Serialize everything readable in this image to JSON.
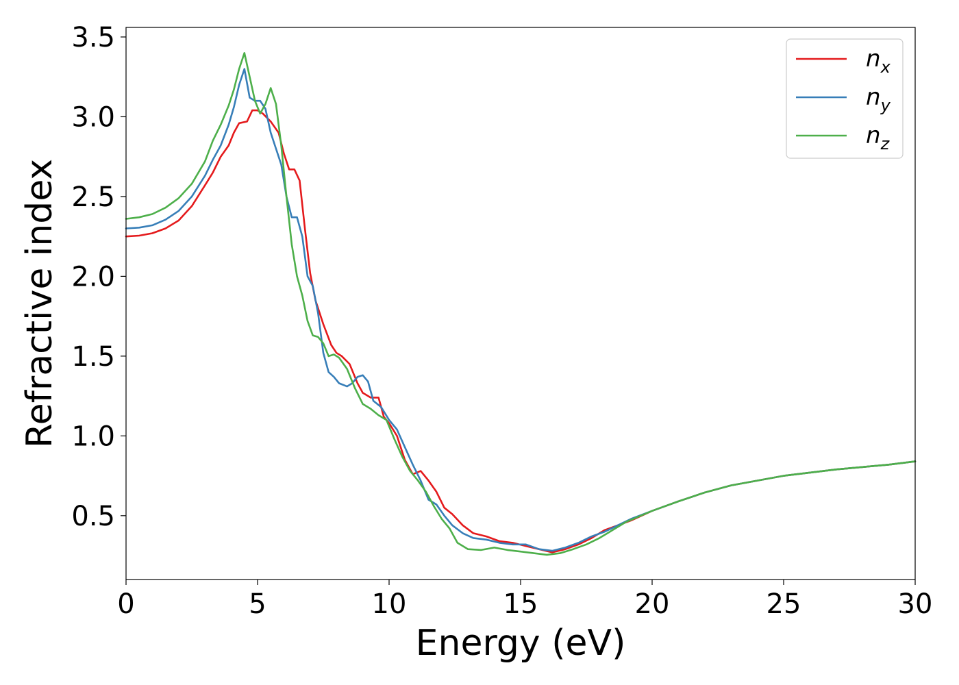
{
  "chart_data": {
    "type": "line",
    "title": "",
    "xlabel": "Energy (eV)",
    "ylabel": "Refractive index",
    "xlim": [
      0,
      30
    ],
    "ylim": [
      0.1,
      3.56
    ],
    "xticks": [
      0,
      5,
      10,
      15,
      20,
      25,
      30
    ],
    "yticks": [
      0.5,
      1.0,
      1.5,
      2.0,
      2.5,
      3.0,
      3.5
    ],
    "xtick_labels": [
      "0",
      "5",
      "10",
      "15",
      "20",
      "25",
      "30"
    ],
    "ytick_labels": [
      "0.5",
      "1.0",
      "1.5",
      "2.0",
      "2.5",
      "3.0",
      "3.5"
    ],
    "grid": false,
    "legend_position": "top-right",
    "series": [
      {
        "name": "n_x",
        "label_base": "n",
        "label_sub": "x",
        "color": "#e41a1c",
        "points": [
          [
            0,
            2.25
          ],
          [
            0.5,
            2.255
          ],
          [
            1,
            2.27
          ],
          [
            1.5,
            2.3
          ],
          [
            2,
            2.35
          ],
          [
            2.5,
            2.44
          ],
          [
            3,
            2.57
          ],
          [
            3.3,
            2.65
          ],
          [
            3.6,
            2.75
          ],
          [
            3.9,
            2.82
          ],
          [
            4.1,
            2.9
          ],
          [
            4.3,
            2.96
          ],
          [
            4.6,
            2.97
          ],
          [
            4.8,
            3.04
          ],
          [
            5.0,
            3.04
          ],
          [
            5.2,
            3.02
          ],
          [
            5.5,
            2.97
          ],
          [
            5.8,
            2.9
          ],
          [
            6.0,
            2.77
          ],
          [
            6.2,
            2.67
          ],
          [
            6.4,
            2.67
          ],
          [
            6.6,
            2.6
          ],
          [
            6.8,
            2.3
          ],
          [
            7.0,
            2.02
          ],
          [
            7.2,
            1.85
          ],
          [
            7.5,
            1.7
          ],
          [
            7.8,
            1.57
          ],
          [
            8.0,
            1.52
          ],
          [
            8.2,
            1.5
          ],
          [
            8.5,
            1.45
          ],
          [
            8.8,
            1.33
          ],
          [
            9.0,
            1.27
          ],
          [
            9.3,
            1.24
          ],
          [
            9.6,
            1.24
          ],
          [
            9.8,
            1.12
          ],
          [
            10.0,
            1.08
          ],
          [
            10.3,
            1.0
          ],
          [
            10.6,
            0.85
          ],
          [
            10.9,
            0.76
          ],
          [
            11.2,
            0.78
          ],
          [
            11.5,
            0.72
          ],
          [
            11.8,
            0.65
          ],
          [
            12.1,
            0.55
          ],
          [
            12.4,
            0.51
          ],
          [
            12.8,
            0.44
          ],
          [
            13.2,
            0.39
          ],
          [
            13.7,
            0.37
          ],
          [
            14.2,
            0.34
          ],
          [
            14.7,
            0.33
          ],
          [
            15.2,
            0.31
          ],
          [
            15.7,
            0.29
          ],
          [
            16.2,
            0.27
          ],
          [
            16.7,
            0.29
          ],
          [
            17.2,
            0.32
          ],
          [
            17.7,
            0.36
          ],
          [
            18.2,
            0.41
          ],
          [
            18.7,
            0.44
          ],
          [
            19.2,
            0.47
          ],
          [
            20,
            0.53
          ],
          [
            21,
            0.59
          ],
          [
            22,
            0.645
          ],
          [
            23,
            0.69
          ],
          [
            24,
            0.72
          ],
          [
            25,
            0.75
          ],
          [
            26,
            0.77
          ],
          [
            27,
            0.79
          ],
          [
            28,
            0.805
          ],
          [
            29,
            0.82
          ],
          [
            30,
            0.84
          ]
        ]
      },
      {
        "name": "n_y",
        "label_base": "n",
        "label_sub": "y",
        "color": "#377eb8",
        "points": [
          [
            0,
            2.3
          ],
          [
            0.5,
            2.305
          ],
          [
            1,
            2.32
          ],
          [
            1.5,
            2.355
          ],
          [
            2,
            2.41
          ],
          [
            2.5,
            2.5
          ],
          [
            3,
            2.63
          ],
          [
            3.3,
            2.73
          ],
          [
            3.6,
            2.82
          ],
          [
            3.9,
            2.95
          ],
          [
            4.1,
            3.06
          ],
          [
            4.3,
            3.2
          ],
          [
            4.5,
            3.3
          ],
          [
            4.7,
            3.12
          ],
          [
            4.9,
            3.1
          ],
          [
            5.1,
            3.1
          ],
          [
            5.3,
            3.05
          ],
          [
            5.5,
            2.9
          ],
          [
            5.7,
            2.8
          ],
          [
            5.9,
            2.7
          ],
          [
            6.1,
            2.5
          ],
          [
            6.3,
            2.37
          ],
          [
            6.5,
            2.37
          ],
          [
            6.7,
            2.25
          ],
          [
            6.9,
            2.0
          ],
          [
            7.1,
            1.94
          ],
          [
            7.3,
            1.77
          ],
          [
            7.5,
            1.52
          ],
          [
            7.7,
            1.4
          ],
          [
            7.9,
            1.37
          ],
          [
            8.1,
            1.33
          ],
          [
            8.4,
            1.31
          ],
          [
            8.6,
            1.33
          ],
          [
            8.8,
            1.37
          ],
          [
            9.0,
            1.38
          ],
          [
            9.2,
            1.34
          ],
          [
            9.4,
            1.22
          ],
          [
            9.7,
            1.18
          ],
          [
            10.0,
            1.1
          ],
          [
            10.3,
            1.04
          ],
          [
            10.6,
            0.93
          ],
          [
            10.9,
            0.82
          ],
          [
            11.2,
            0.72
          ],
          [
            11.5,
            0.6
          ],
          [
            11.8,
            0.57
          ],
          [
            12.1,
            0.5
          ],
          [
            12.4,
            0.44
          ],
          [
            12.8,
            0.39
          ],
          [
            13.2,
            0.36
          ],
          [
            13.7,
            0.35
          ],
          [
            14.2,
            0.33
          ],
          [
            14.7,
            0.32
          ],
          [
            15.2,
            0.32
          ],
          [
            15.7,
            0.29
          ],
          [
            16.2,
            0.28
          ],
          [
            16.7,
            0.3
          ],
          [
            17.2,
            0.33
          ],
          [
            17.7,
            0.37
          ],
          [
            18.2,
            0.4
          ],
          [
            18.7,
            0.44
          ],
          [
            19.2,
            0.48
          ],
          [
            20,
            0.53
          ],
          [
            21,
            0.59
          ],
          [
            22,
            0.645
          ],
          [
            23,
            0.69
          ],
          [
            24,
            0.72
          ],
          [
            25,
            0.75
          ],
          [
            26,
            0.77
          ],
          [
            27,
            0.79
          ],
          [
            28,
            0.805
          ],
          [
            29,
            0.82
          ],
          [
            30,
            0.84
          ]
        ]
      },
      {
        "name": "n_z",
        "label_base": "n",
        "label_sub": "z",
        "color": "#4daf4a",
        "points": [
          [
            0,
            2.36
          ],
          [
            0.5,
            2.37
          ],
          [
            1,
            2.39
          ],
          [
            1.5,
            2.43
          ],
          [
            2,
            2.49
          ],
          [
            2.5,
            2.58
          ],
          [
            3,
            2.72
          ],
          [
            3.3,
            2.85
          ],
          [
            3.6,
            2.95
          ],
          [
            3.9,
            3.07
          ],
          [
            4.1,
            3.17
          ],
          [
            4.3,
            3.3
          ],
          [
            4.5,
            3.4
          ],
          [
            4.7,
            3.25
          ],
          [
            4.9,
            3.1
          ],
          [
            5.1,
            3.02
          ],
          [
            5.3,
            3.08
          ],
          [
            5.5,
            3.18
          ],
          [
            5.7,
            3.08
          ],
          [
            5.9,
            2.82
          ],
          [
            6.1,
            2.5
          ],
          [
            6.3,
            2.2
          ],
          [
            6.5,
            2.0
          ],
          [
            6.7,
            1.88
          ],
          [
            6.9,
            1.72
          ],
          [
            7.1,
            1.63
          ],
          [
            7.3,
            1.62
          ],
          [
            7.5,
            1.58
          ],
          [
            7.7,
            1.5
          ],
          [
            7.9,
            1.51
          ],
          [
            8.1,
            1.49
          ],
          [
            8.4,
            1.42
          ],
          [
            8.7,
            1.3
          ],
          [
            9.0,
            1.2
          ],
          [
            9.3,
            1.17
          ],
          [
            9.6,
            1.13
          ],
          [
            9.9,
            1.1
          ],
          [
            10.2,
            0.98
          ],
          [
            10.5,
            0.87
          ],
          [
            10.8,
            0.78
          ],
          [
            11.1,
            0.72
          ],
          [
            11.4,
            0.65
          ],
          [
            11.7,
            0.56
          ],
          [
            12.0,
            0.48
          ],
          [
            12.3,
            0.42
          ],
          [
            12.6,
            0.33
          ],
          [
            13.0,
            0.29
          ],
          [
            13.5,
            0.285
          ],
          [
            14.0,
            0.3
          ],
          [
            14.5,
            0.285
          ],
          [
            15.0,
            0.275
          ],
          [
            15.5,
            0.265
          ],
          [
            16.0,
            0.255
          ],
          [
            16.5,
            0.265
          ],
          [
            17.0,
            0.29
          ],
          [
            17.5,
            0.32
          ],
          [
            18.0,
            0.36
          ],
          [
            18.5,
            0.41
          ],
          [
            19.0,
            0.46
          ],
          [
            20,
            0.53
          ],
          [
            21,
            0.59
          ],
          [
            22,
            0.645
          ],
          [
            23,
            0.69
          ],
          [
            24,
            0.72
          ],
          [
            25,
            0.75
          ],
          [
            26,
            0.77
          ],
          [
            27,
            0.79
          ],
          [
            28,
            0.805
          ],
          [
            29,
            0.82
          ],
          [
            30,
            0.84
          ]
        ]
      }
    ]
  }
}
